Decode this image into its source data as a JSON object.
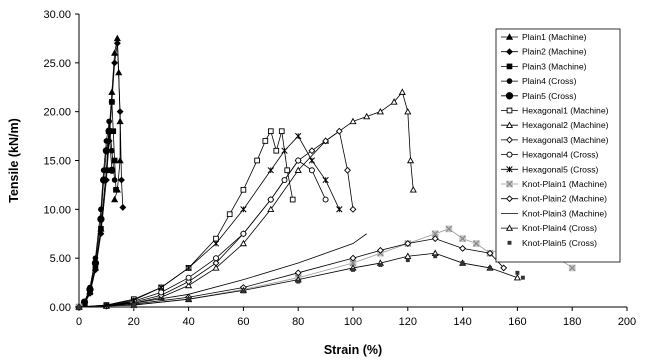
{
  "chart_data": {
    "type": "line",
    "title": "",
    "xlabel": "Strain (%)",
    "ylabel": "Tensile (kN/m)",
    "xlim": [
      0,
      200
    ],
    "ylim": [
      0,
      30
    ],
    "x_ticks": [
      "0",
      "20",
      "40",
      "60",
      "80",
      "100",
      "120",
      "140",
      "160",
      "180",
      "200"
    ],
    "y_ticks": [
      "0.00",
      "5.00",
      "10.00",
      "15.00",
      "20.00",
      "25.00",
      "30.00"
    ],
    "grid": false,
    "legend_position": "right",
    "series": [
      {
        "name": "Plain1 (Machine)",
        "marker": "triangle-filled",
        "line": "solid",
        "x": [
          0,
          2,
          4,
          6,
          8,
          10,
          11,
          12,
          13,
          14,
          14.5,
          15,
          15,
          14,
          13
        ],
        "y": [
          0,
          0.4,
          1.6,
          4,
          8,
          14,
          18,
          22,
          26,
          27.5,
          24,
          19,
          15,
          12,
          11
        ]
      },
      {
        "name": "Plain2 (Machine)",
        "marker": "diamond-filled",
        "line": "solid",
        "x": [
          0,
          2,
          4,
          6,
          8,
          10,
          11,
          12,
          13,
          14,
          15,
          15.5,
          16
        ],
        "y": [
          0,
          0.3,
          1.4,
          3.8,
          7.5,
          13,
          17,
          21,
          25,
          27,
          20,
          13,
          10.2
        ]
      },
      {
        "name": "Plain3 (Machine)",
        "marker": "square-filled",
        "line": "solid",
        "x": [
          0,
          2,
          4,
          6,
          8,
          10,
          11,
          12,
          12.5,
          13,
          13.5
        ],
        "y": [
          0,
          0.4,
          1.5,
          4,
          8,
          14,
          18,
          21,
          18,
          15,
          12
        ]
      },
      {
        "name": "Plain4 (Cross)",
        "marker": "circle-filled",
        "line": "solid",
        "x": [
          0,
          2,
          4,
          6,
          8,
          9,
          10,
          11,
          12,
          13
        ],
        "y": [
          0,
          0.5,
          2,
          5,
          10,
          14,
          17,
          19,
          16,
          13
        ]
      },
      {
        "name": "Plain5 (Cross)",
        "marker": "circle-large-filled",
        "line": "solid",
        "x": [
          0,
          2,
          4,
          6,
          8,
          9,
          10,
          11,
          12
        ],
        "y": [
          0,
          0.5,
          1.8,
          4.5,
          9,
          13,
          16,
          18,
          14
        ]
      },
      {
        "name": "Hexagonal1 (Machine)",
        "marker": "square-open",
        "line": "solid",
        "x": [
          0,
          10,
          20,
          30,
          40,
          50,
          55,
          60,
          65,
          68,
          70,
          72,
          74,
          76,
          78
        ],
        "y": [
          0,
          0.2,
          0.8,
          2,
          4,
          7,
          9.5,
          12,
          15,
          17,
          18,
          16,
          18,
          14,
          11
        ]
      },
      {
        "name": "Hexagonal2 (Machine)",
        "marker": "triangle-open",
        "line": "solid",
        "x": [
          0,
          10,
          20,
          30,
          40,
          50,
          60,
          70,
          80,
          90,
          100,
          105,
          110,
          115,
          118,
          120,
          121,
          122
        ],
        "y": [
          0,
          0.1,
          0.4,
          1,
          2.2,
          4,
          6.5,
          10,
          14,
          17,
          19,
          19.5,
          20,
          21,
          22,
          20,
          15,
          12
        ]
      },
      {
        "name": "Hexagonal3 (Machine)",
        "marker": "diamond-open",
        "line": "solid",
        "x": [
          0,
          10,
          20,
          30,
          40,
          50,
          60,
          70,
          80,
          85,
          90,
          95,
          98,
          100
        ],
        "y": [
          0,
          0.1,
          0.5,
          1.2,
          2.6,
          4.5,
          7.5,
          11,
          15,
          16,
          17,
          18,
          14,
          10
        ]
      },
      {
        "name": "Hexagonal4 (Cross)",
        "marker": "circle-open",
        "line": "solid",
        "x": [
          0,
          10,
          20,
          30,
          40,
          50,
          60,
          70,
          75,
          80,
          85,
          90
        ],
        "y": [
          0,
          0.1,
          0.6,
          1.5,
          3,
          5,
          7.5,
          11,
          13,
          15,
          14,
          11
        ]
      },
      {
        "name": "Hexagonal5 (Cross)",
        "marker": "star",
        "line": "solid",
        "x": [
          0,
          10,
          20,
          30,
          40,
          50,
          60,
          70,
          75,
          80,
          85,
          90,
          95
        ],
        "y": [
          0,
          0.15,
          0.7,
          2,
          4,
          6.5,
          10,
          14,
          16,
          17.5,
          15,
          13,
          10
        ]
      },
      {
        "name": "Knot-Plain1 (Machine)",
        "marker": "x-grey-box",
        "line": "solid",
        "x": [
          0,
          20,
          40,
          60,
          80,
          100,
          110,
          120,
          130,
          135,
          140,
          145,
          150,
          155,
          160,
          165,
          170,
          175,
          180
        ],
        "y": [
          0,
          0.2,
          0.8,
          1.8,
          3,
          4.5,
          5.5,
          6.5,
          7.5,
          8,
          7,
          6.5,
          5.5,
          6,
          5,
          5.5,
          6,
          5,
          4
        ]
      },
      {
        "name": "Knot-Plain2 (Machine)",
        "marker": "diamond-open",
        "line": "solid",
        "x": [
          0,
          20,
          40,
          60,
          80,
          100,
          110,
          120,
          130,
          140,
          150,
          155
        ],
        "y": [
          0,
          0.3,
          1,
          2,
          3.5,
          5,
          5.8,
          6.5,
          7,
          6,
          5.5,
          4
        ]
      },
      {
        "name": "Knot-Plain3 (Machine)",
        "marker": "none",
        "line": "solid",
        "x": [
          0,
          20,
          40,
          60,
          80,
          90,
          100,
          105
        ],
        "y": [
          0,
          0.4,
          1.3,
          2.8,
          4.5,
          5.5,
          6.5,
          7.5
        ]
      },
      {
        "name": "Knot-Plain4 (Cross)",
        "marker": "triangle-open",
        "line": "solid",
        "x": [
          0,
          20,
          40,
          60,
          80,
          100,
          110,
          120,
          130,
          140,
          150,
          160
        ],
        "y": [
          0,
          0.2,
          0.8,
          1.7,
          2.8,
          4,
          4.5,
          5.2,
          5.5,
          4.5,
          4,
          3
        ]
      },
      {
        "name": "Knot-Plain5 (Cross)",
        "marker": "square-dark-small",
        "line": "none",
        "x": [
          0,
          20,
          40,
          60,
          80,
          100,
          110,
          120,
          130,
          140,
          150,
          160,
          162
        ],
        "y": [
          0,
          0.2,
          0.8,
          1.6,
          2.6,
          3.8,
          4.3,
          4.8,
          5.2,
          4.5,
          4,
          3.5,
          3
        ]
      }
    ]
  }
}
